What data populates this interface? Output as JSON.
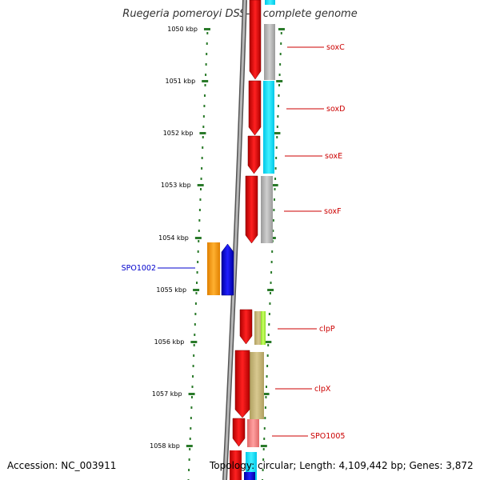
{
  "title": "Ruegeria pomeroyi DSS-3, complete genome",
  "footer": {
    "accession": "Accession: NC_003911",
    "topology": "Topology: circular; Length: 4,109,442 bp; Genes: 3,872"
  },
  "ticks": [
    {
      "label": "1050 kbp"
    },
    {
      "label": "1051 kbp"
    },
    {
      "label": "1052 kbp"
    },
    {
      "label": "1053 kbp"
    },
    {
      "label": "1054 kbp"
    },
    {
      "label": "1055 kbp"
    },
    {
      "label": "1056 kbp"
    },
    {
      "label": "1057 kbp"
    },
    {
      "label": "1058 kbp"
    }
  ],
  "gene_labels": [
    {
      "name": "soxC",
      "color": "#cc0000"
    },
    {
      "name": "soxD",
      "color": "#cc0000"
    },
    {
      "name": "soxE",
      "color": "#cc0000"
    },
    {
      "name": "soxF",
      "color": "#cc0000"
    },
    {
      "name": "SPO1002",
      "color": "#0000cc"
    },
    {
      "name": "clpP",
      "color": "#cc0000"
    },
    {
      "name": "clpX",
      "color": "#cc0000"
    },
    {
      "name": "SPO1005",
      "color": "#cc0000"
    }
  ],
  "colors": {
    "forward_gene": "#ee0000",
    "reverse_gene": "#0000ee",
    "cog_orange": "#ff9900",
    "cog_cyan": "#00e5ff",
    "cog_gray": "#b3b3b3",
    "cog_olive": "#c8b878",
    "cog_lime": "#aaff44",
    "cog_pink": "#f08080",
    "backbone": "#808080",
    "tick": "#2a7a2a"
  }
}
